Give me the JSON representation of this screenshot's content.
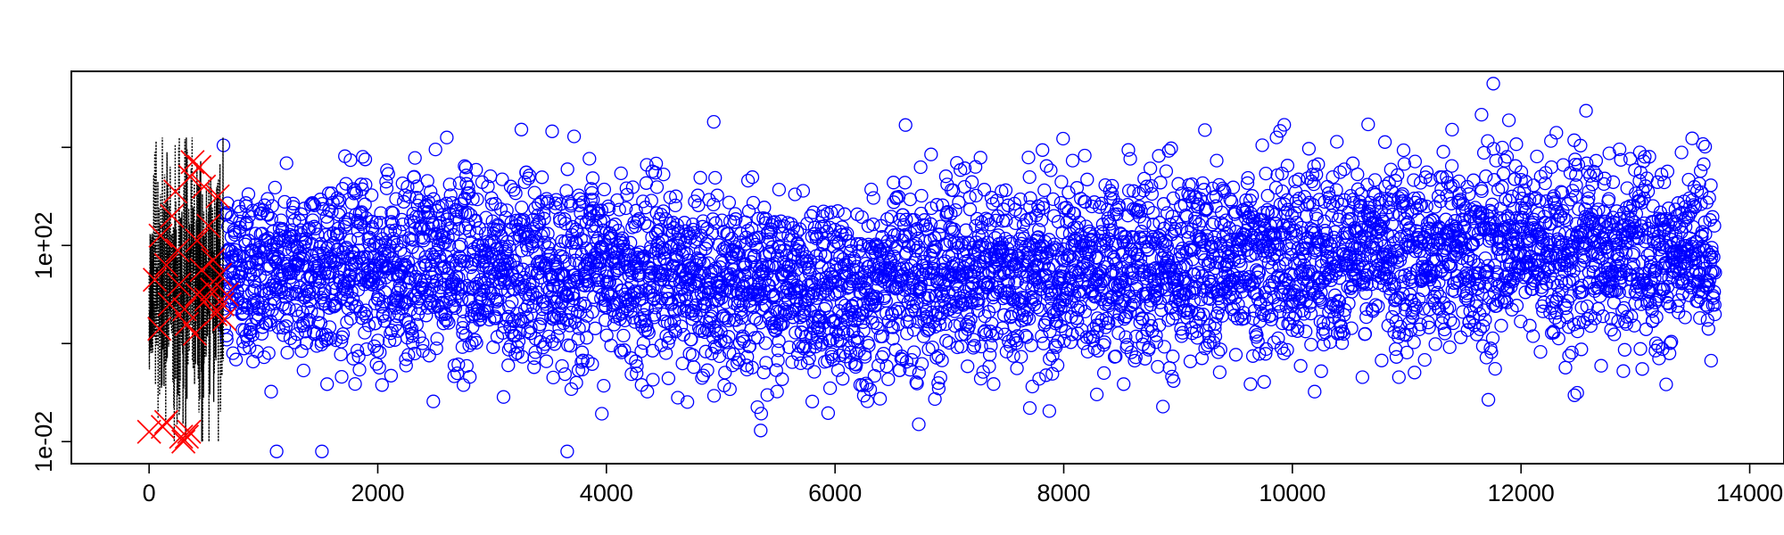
{
  "chart_data": {
    "type": "scatter",
    "title": "",
    "xlabel": "",
    "ylabel": "",
    "x_range": [
      0,
      13700
    ],
    "xlim": [
      -680,
      14300
    ],
    "ylim_log10": [
      -2.45,
      5.55
    ],
    "y_scale": "log",
    "grid": false,
    "x_ticks": [
      0,
      2000,
      4000,
      6000,
      8000,
      10000,
      12000,
      14000
    ],
    "x_tick_labels": [
      "0",
      "2000",
      "4000",
      "6000",
      "8000",
      "10000",
      "12000",
      "14000"
    ],
    "y_ticks_log10": [
      -2,
      0,
      2,
      4
    ],
    "y_tick_labels": [
      {
        "log10": -2,
        "text": "1e-02"
      },
      {
        "log10": 2,
        "text": "1e+02"
      }
    ],
    "series": [
      {
        "marker": "open-circle",
        "color": "#0000ff",
        "x_range": [
          650,
          13700
        ],
        "typical_log10_range": [
          -0.5,
          4.0
        ],
        "min_log10": -2.2,
        "max_log10": 5.3
      },
      {
        "marker": "dotted-line",
        "color": "#000000",
        "x_range": [
          0,
          650
        ],
        "min_log10": -2.0,
        "max_log10": 4.2
      },
      {
        "marker": "x-cross",
        "color": "#ff0000",
        "points": [
          [
            0,
            -1.8
          ],
          [
            50,
            1.3
          ],
          [
            90,
            0.3
          ],
          [
            120,
            -1.7
          ],
          [
            150,
            1.6
          ],
          [
            180,
            0.8
          ],
          [
            200,
            2.6
          ],
          [
            230,
            3.1
          ],
          [
            260,
            1.2
          ],
          [
            280,
            -1.9
          ],
          [
            300,
            -2.0
          ],
          [
            310,
            0.7
          ],
          [
            330,
            0.4
          ],
          [
            350,
            -1.8
          ],
          [
            360,
            3.4
          ],
          [
            380,
            3.7
          ],
          [
            400,
            0.2
          ],
          [
            420,
            1.0
          ],
          [
            440,
            3.6
          ],
          [
            460,
            1.5
          ],
          [
            480,
            3.2
          ],
          [
            500,
            0.9
          ],
          [
            520,
            2.4
          ],
          [
            550,
            1.1
          ],
          [
            580,
            0.6
          ],
          [
            600,
            3.0
          ],
          [
            620,
            1.4
          ],
          [
            640,
            0.8
          ],
          [
            660,
            0.5
          ],
          [
            680,
            1.0
          ],
          [
            150,
            -1.6
          ],
          [
            330,
            -1.9
          ],
          [
            100,
            2.2
          ],
          [
            250,
            1.9
          ],
          [
            420,
            2.1
          ],
          [
            560,
            1.7
          ]
        ]
      }
    ]
  }
}
